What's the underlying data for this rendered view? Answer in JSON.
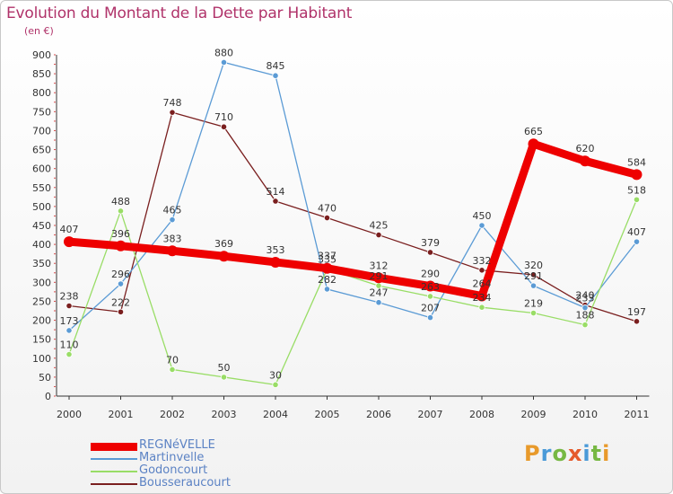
{
  "title": "Evolution du Montant de la Dette par Habitant",
  "unit_label": "(en €)",
  "logo": "Proxiti",
  "chart_data": {
    "type": "line",
    "title": "Evolution du Montant de la Dette par Habitant",
    "ylabel": "(en €)",
    "xlabel": "",
    "ylim": [
      0,
      900
    ],
    "y_ticks": [
      0,
      50,
      100,
      150,
      200,
      250,
      300,
      350,
      400,
      450,
      500,
      550,
      600,
      650,
      700,
      750,
      800,
      850,
      900
    ],
    "grid": false,
    "legend_position": "bottom-left",
    "categories": [
      "2000",
      "2001",
      "2002",
      "2003",
      "2004",
      "2005",
      "2006",
      "2007",
      "2008",
      "2009",
      "2010",
      "2011"
    ],
    "series": [
      {
        "name": "REGNéVELLE",
        "color": "#ee0000",
        "values": [
          407,
          396,
          383,
          369,
          353,
          337,
          312,
          290,
          264,
          665,
          620,
          584
        ]
      },
      {
        "name": "Martinvelle",
        "color": "#5b9bd5",
        "values": [
          173,
          296,
          465,
          880,
          845,
          282,
          247,
          207,
          450,
          291,
          233,
          407
        ]
      },
      {
        "name": "Godoncourt",
        "color": "#99dd66",
        "values": [
          110,
          488,
          70,
          50,
          30,
          335,
          291,
          263,
          234,
          219,
          188,
          518
        ]
      },
      {
        "name": "Bousseraucourt",
        "color": "#7a1f1f",
        "values": [
          238,
          222,
          748,
          710,
          514,
          470,
          425,
          379,
          332,
          320,
          240,
          197
        ]
      }
    ]
  }
}
